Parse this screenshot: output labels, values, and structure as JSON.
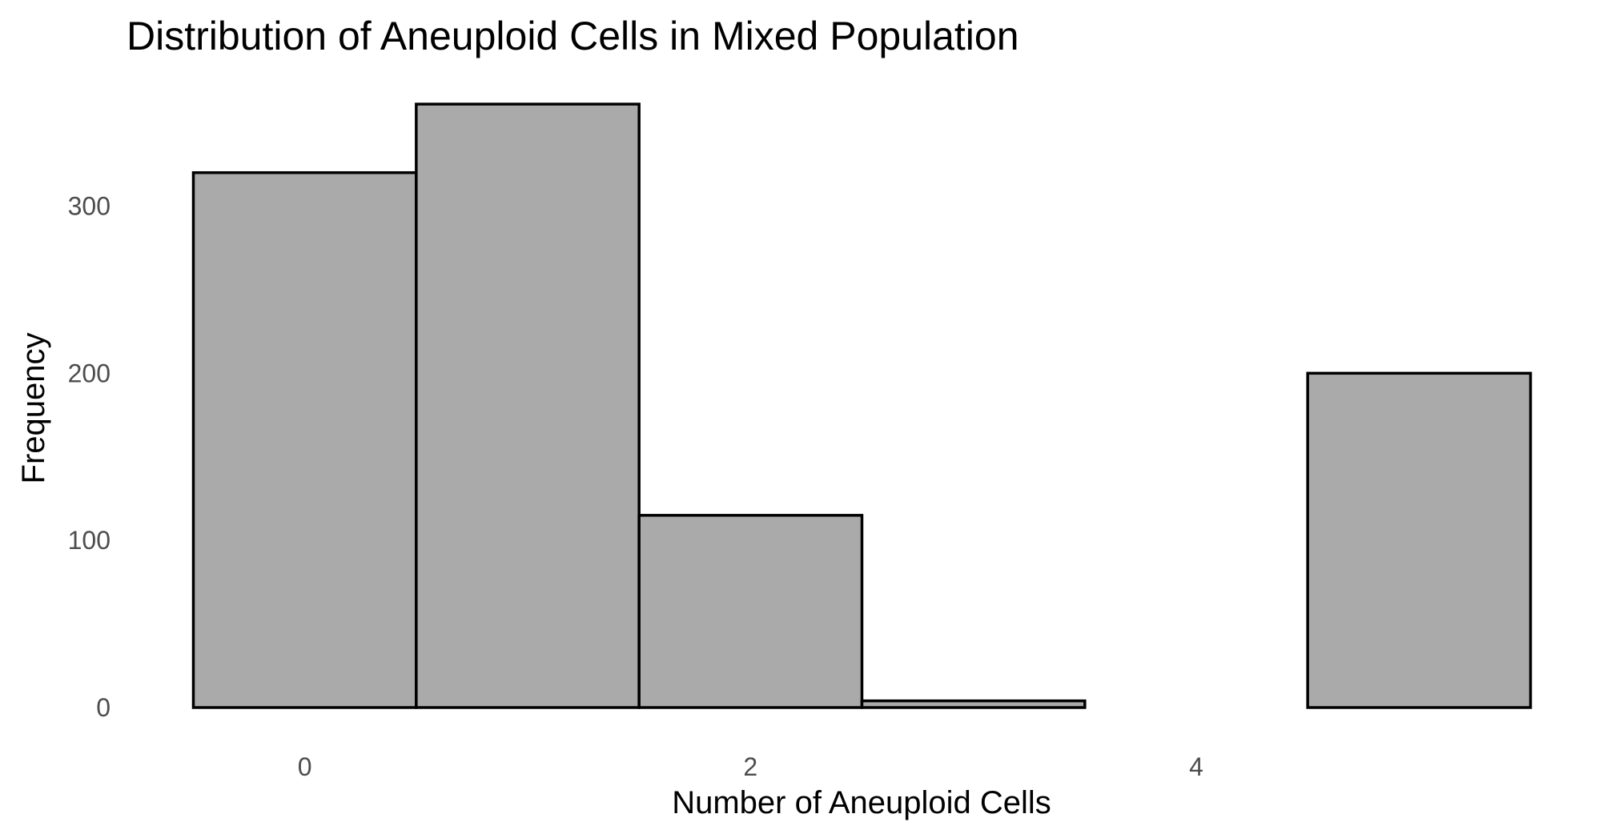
{
  "chart_data": {
    "type": "bar",
    "title": "Distribution of Aneuploid Cells in Mixed Population",
    "xlabel": "Number of Aneuploid Cells",
    "ylabel": "Frequency",
    "bins": [
      {
        "start": -0.5,
        "end": 0.5,
        "count": 320
      },
      {
        "start": 0.5,
        "end": 1.5,
        "count": 361
      },
      {
        "start": 1.5,
        "end": 2.5,
        "count": 115
      },
      {
        "start": 2.5,
        "end": 3.5,
        "count": 4
      },
      {
        "start": 3.5,
        "end": 4.5,
        "count": 0
      },
      {
        "start": 4.5,
        "end": 5.5,
        "count": 200
      }
    ],
    "xlim": [
      -0.8,
      5.8
    ],
    "ylim": [
      0,
      362
    ],
    "x_ticks": [
      {
        "value": 0,
        "label": "0"
      },
      {
        "value": 2,
        "label": "2"
      },
      {
        "value": 4,
        "label": "4"
      }
    ],
    "y_ticks": [
      {
        "value": 0,
        "label": "0"
      },
      {
        "value": 100,
        "label": "100"
      },
      {
        "value": 200,
        "label": "200"
      },
      {
        "value": 300,
        "label": "300"
      }
    ],
    "grid": false,
    "legend": "none",
    "colors": {
      "bar_fill": "#aaaaaa",
      "bar_stroke": "#000000",
      "background": "#ffffff"
    }
  }
}
